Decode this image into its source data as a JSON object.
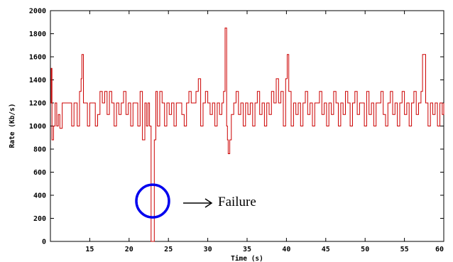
{
  "chart_data": {
    "type": "line",
    "title": "",
    "xlabel": "Time (s)",
    "ylabel": "Rate (Kb/s)",
    "xlim": [
      10,
      60
    ],
    "ylim": [
      0,
      2000
    ],
    "x_ticks": [
      15,
      20,
      25,
      30,
      35,
      40,
      45,
      50,
      55,
      60
    ],
    "y_ticks": [
      0,
      200,
      400,
      600,
      800,
      1000,
      1200,
      1400,
      1600,
      1800,
      2000
    ],
    "grid": false,
    "legend": "none",
    "series": [
      {
        "color": "#cc0000",
        "style": "step",
        "points": [
          [
            10.0,
            1200
          ],
          [
            10.1,
            1500
          ],
          [
            10.2,
            880
          ],
          [
            10.4,
            1000
          ],
          [
            10.6,
            1200
          ],
          [
            10.8,
            1000
          ],
          [
            11.0,
            1100
          ],
          [
            11.2,
            980
          ],
          [
            11.5,
            1200
          ],
          [
            12.5,
            1200
          ],
          [
            12.7,
            1000
          ],
          [
            13.0,
            1200
          ],
          [
            13.4,
            1000
          ],
          [
            13.7,
            1300
          ],
          [
            13.9,
            1410
          ],
          [
            14.0,
            1620
          ],
          [
            14.2,
            1200
          ],
          [
            14.5,
            1200
          ],
          [
            14.7,
            1000
          ],
          [
            15.0,
            1200
          ],
          [
            15.5,
            1200
          ],
          [
            15.7,
            1000
          ],
          [
            16.0,
            1100
          ],
          [
            16.3,
            1300
          ],
          [
            16.6,
            1200
          ],
          [
            16.9,
            1300
          ],
          [
            17.2,
            1100
          ],
          [
            17.5,
            1300
          ],
          [
            17.8,
            1200
          ],
          [
            18.1,
            1000
          ],
          [
            18.4,
            1200
          ],
          [
            18.7,
            1100
          ],
          [
            19.0,
            1200
          ],
          [
            19.3,
            1300
          ],
          [
            19.6,
            1100
          ],
          [
            19.9,
            1200
          ],
          [
            20.2,
            1000
          ],
          [
            20.5,
            1200
          ],
          [
            20.8,
            1200
          ],
          [
            21.1,
            1000
          ],
          [
            21.4,
            1300
          ],
          [
            21.7,
            880
          ],
          [
            22.0,
            1200
          ],
          [
            22.2,
            1000
          ],
          [
            22.4,
            1200
          ],
          [
            22.6,
            1000
          ],
          [
            22.8,
            0
          ],
          [
            23.2,
            880
          ],
          [
            23.4,
            1300
          ],
          [
            23.6,
            1000
          ],
          [
            23.9,
            1300
          ],
          [
            24.2,
            1200
          ],
          [
            24.5,
            1000
          ],
          [
            24.8,
            1200
          ],
          [
            25.1,
            1100
          ],
          [
            25.4,
            1200
          ],
          [
            25.7,
            1000
          ],
          [
            26.0,
            1200
          ],
          [
            26.4,
            1200
          ],
          [
            26.7,
            1100
          ],
          [
            27.0,
            1000
          ],
          [
            27.3,
            1200
          ],
          [
            27.6,
            1300
          ],
          [
            27.9,
            1200
          ],
          [
            28.2,
            1200
          ],
          [
            28.5,
            1300
          ],
          [
            28.8,
            1410
          ],
          [
            29.1,
            1000
          ],
          [
            29.4,
            1200
          ],
          [
            29.7,
            1300
          ],
          [
            30.0,
            1200
          ],
          [
            30.3,
            1100
          ],
          [
            30.6,
            1200
          ],
          [
            30.9,
            1000
          ],
          [
            31.2,
            1200
          ],
          [
            31.5,
            1100
          ],
          [
            31.8,
            1200
          ],
          [
            32.0,
            1300
          ],
          [
            32.2,
            1850
          ],
          [
            32.4,
            1000
          ],
          [
            32.5,
            880
          ],
          [
            32.6,
            760
          ],
          [
            32.8,
            880
          ],
          [
            33.0,
            1100
          ],
          [
            33.3,
            1200
          ],
          [
            33.6,
            1300
          ],
          [
            33.9,
            1100
          ],
          [
            34.2,
            1200
          ],
          [
            34.5,
            1000
          ],
          [
            34.8,
            1200
          ],
          [
            35.1,
            1100
          ],
          [
            35.4,
            1200
          ],
          [
            35.7,
            1000
          ],
          [
            36.0,
            1200
          ],
          [
            36.3,
            1300
          ],
          [
            36.6,
            1100
          ],
          [
            36.9,
            1200
          ],
          [
            37.2,
            1000
          ],
          [
            37.5,
            1200
          ],
          [
            37.8,
            1100
          ],
          [
            38.1,
            1300
          ],
          [
            38.4,
            1200
          ],
          [
            38.7,
            1410
          ],
          [
            39.0,
            1200
          ],
          [
            39.3,
            1300
          ],
          [
            39.6,
            1000
          ],
          [
            39.9,
            1410
          ],
          [
            40.1,
            1620
          ],
          [
            40.3,
            1300
          ],
          [
            40.6,
            1000
          ],
          [
            40.9,
            1200
          ],
          [
            41.2,
            1100
          ],
          [
            41.5,
            1200
          ],
          [
            41.8,
            1000
          ],
          [
            42.1,
            1200
          ],
          [
            42.4,
            1300
          ],
          [
            42.7,
            1100
          ],
          [
            43.0,
            1200
          ],
          [
            43.3,
            1000
          ],
          [
            43.6,
            1200
          ],
          [
            43.9,
            1200
          ],
          [
            44.2,
            1300
          ],
          [
            44.5,
            1100
          ],
          [
            44.8,
            1200
          ],
          [
            45.1,
            1000
          ],
          [
            45.4,
            1200
          ],
          [
            45.7,
            1100
          ],
          [
            46.0,
            1300
          ],
          [
            46.3,
            1200
          ],
          [
            46.6,
            1000
          ],
          [
            46.9,
            1200
          ],
          [
            47.2,
            1100
          ],
          [
            47.5,
            1300
          ],
          [
            47.8,
            1200
          ],
          [
            48.1,
            1000
          ],
          [
            48.4,
            1200
          ],
          [
            48.7,
            1300
          ],
          [
            49.0,
            1100
          ],
          [
            49.3,
            1200
          ],
          [
            49.6,
            1200
          ],
          [
            49.9,
            1000
          ],
          [
            50.2,
            1300
          ],
          [
            50.5,
            1100
          ],
          [
            50.8,
            1200
          ],
          [
            51.1,
            1000
          ],
          [
            51.4,
            1200
          ],
          [
            51.7,
            1200
          ],
          [
            52.0,
            1300
          ],
          [
            52.3,
            1100
          ],
          [
            52.6,
            1000
          ],
          [
            52.9,
            1200
          ],
          [
            53.2,
            1300
          ],
          [
            53.5,
            1100
          ],
          [
            53.8,
            1200
          ],
          [
            54.1,
            1000
          ],
          [
            54.4,
            1200
          ],
          [
            54.7,
            1300
          ],
          [
            55.0,
            1100
          ],
          [
            55.3,
            1200
          ],
          [
            55.6,
            1000
          ],
          [
            55.9,
            1200
          ],
          [
            56.2,
            1300
          ],
          [
            56.5,
            1100
          ],
          [
            56.8,
            1200
          ],
          [
            57.1,
            1300
          ],
          [
            57.3,
            1620
          ],
          [
            57.7,
            1200
          ],
          [
            58.0,
            1000
          ],
          [
            58.3,
            1200
          ],
          [
            58.6,
            1100
          ],
          [
            58.9,
            1200
          ],
          [
            59.2,
            1000
          ],
          [
            59.5,
            1200
          ],
          [
            59.8,
            1100
          ],
          [
            60.0,
            1200
          ]
        ]
      }
    ],
    "annotations": [
      {
        "text": "Failure",
        "marker": "circle",
        "marker_color": "#0000ee",
        "at": [
          23,
          350
        ]
      }
    ]
  }
}
